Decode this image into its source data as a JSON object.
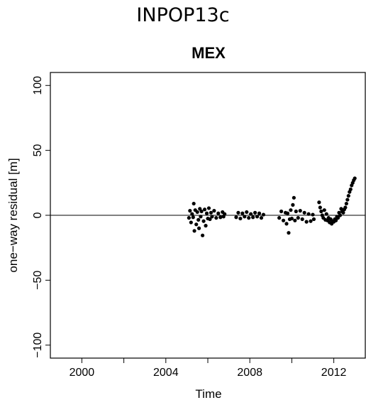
{
  "header": {
    "title": "INPOP13c"
  },
  "chart_data": {
    "type": "scatter",
    "title": "MEX",
    "xlabel": "Time",
    "ylabel": "one−way residual [m]",
    "xlim": [
      1998.5,
      2013.5
    ],
    "ylim": [
      -110,
      110
    ],
    "x_ticks": [
      2000,
      2002,
      2004,
      2006,
      2008,
      2010,
      2012
    ],
    "x_tick_labels": [
      "2000",
      "",
      "2004",
      "",
      "2008",
      "",
      "2012"
    ],
    "y_ticks": [
      -100,
      -50,
      0,
      50,
      100
    ],
    "y_tick_labels": [
      "−100",
      "−50",
      "0",
      "50",
      "100"
    ],
    "reference_line": 0,
    "grid": false,
    "marker_color": "#000000",
    "series": [
      {
        "values": [
          [
            2005.1,
            -2.0
          ],
          [
            2005.15,
            3.5
          ],
          [
            2005.2,
            -5.5
          ],
          [
            2005.25,
            1.0
          ],
          [
            2005.3,
            -1.5
          ],
          [
            2005.33,
            9.0
          ],
          [
            2005.36,
            -12.0
          ],
          [
            2005.4,
            4.0
          ],
          [
            2005.45,
            -7.0
          ],
          [
            2005.5,
            2.5
          ],
          [
            2005.55,
            -3.5
          ],
          [
            2005.58,
            -10.0
          ],
          [
            2005.62,
            5.0
          ],
          [
            2005.66,
            -1.0
          ],
          [
            2005.7,
            3.0
          ],
          [
            2005.75,
            -15.5
          ],
          [
            2005.8,
            -4.5
          ],
          [
            2005.85,
            4.5
          ],
          [
            2005.9,
            -8.0
          ],
          [
            2005.95,
            1.5
          ],
          [
            2006.0,
            -2.5
          ],
          [
            2006.05,
            5.5
          ],
          [
            2006.1,
            -3.0
          ],
          [
            2006.15,
            2.0
          ],
          [
            2006.2,
            -1.0
          ],
          [
            2006.3,
            3.5
          ],
          [
            2006.4,
            -2.0
          ],
          [
            2006.5,
            1.5
          ],
          [
            2006.6,
            -1.5
          ],
          [
            2006.7,
            2.5
          ],
          [
            2006.75,
            -1.0
          ],
          [
            2006.8,
            1.0
          ],
          [
            2007.35,
            -1.5
          ],
          [
            2007.45,
            2.0
          ],
          [
            2007.55,
            -2.5
          ],
          [
            2007.65,
            1.5
          ],
          [
            2007.75,
            -1.0
          ],
          [
            2007.85,
            2.5
          ],
          [
            2007.95,
            -2.0
          ],
          [
            2008.05,
            1.0
          ],
          [
            2008.15,
            -1.5
          ],
          [
            2008.25,
            2.0
          ],
          [
            2008.35,
            -1.0
          ],
          [
            2008.45,
            1.5
          ],
          [
            2008.55,
            -2.0
          ],
          [
            2008.65,
            0.5
          ],
          [
            2009.4,
            -2.0
          ],
          [
            2009.5,
            3.0
          ],
          [
            2009.6,
            -4.0
          ],
          [
            2009.7,
            2.0
          ],
          [
            2009.75,
            -6.5
          ],
          [
            2009.8,
            1.5
          ],
          [
            2009.85,
            -13.5
          ],
          [
            2009.9,
            -3.0
          ],
          [
            2009.95,
            4.0
          ],
          [
            2010.0,
            -2.5
          ],
          [
            2010.05,
            8.0
          ],
          [
            2010.1,
            13.5
          ],
          [
            2010.15,
            -4.0
          ],
          [
            2010.2,
            3.0
          ],
          [
            2010.3,
            -2.0
          ],
          [
            2010.4,
            3.5
          ],
          [
            2010.5,
            -3.0
          ],
          [
            2010.6,
            2.0
          ],
          [
            2010.7,
            -5.0
          ],
          [
            2010.8,
            1.0
          ],
          [
            2010.9,
            -4.5
          ],
          [
            2011.0,
            0.5
          ],
          [
            2011.05,
            -3.0
          ],
          [
            2011.3,
            10.0
          ],
          [
            2011.35,
            6.0
          ],
          [
            2011.4,
            3.0
          ],
          [
            2011.45,
            0.0
          ],
          [
            2011.5,
            -2.0
          ],
          [
            2011.55,
            4.0
          ],
          [
            2011.6,
            -3.5
          ],
          [
            2011.65,
            1.0
          ],
          [
            2011.7,
            -4.0
          ],
          [
            2011.75,
            -2.0
          ],
          [
            2011.8,
            -5.5
          ],
          [
            2011.85,
            -3.0
          ],
          [
            2011.9,
            -6.5
          ],
          [
            2011.95,
            -4.5
          ],
          [
            2012.0,
            -5.0
          ],
          [
            2012.05,
            -3.0
          ],
          [
            2012.1,
            -4.0
          ],
          [
            2012.15,
            -1.0
          ],
          [
            2012.2,
            -2.0
          ],
          [
            2012.25,
            2.0
          ],
          [
            2012.3,
            0.0
          ],
          [
            2012.35,
            5.0
          ],
          [
            2012.4,
            3.0
          ],
          [
            2012.45,
            2.0
          ],
          [
            2012.5,
            4.5
          ],
          [
            2012.55,
            6.0
          ],
          [
            2012.6,
            9.0
          ],
          [
            2012.65,
            12.0
          ],
          [
            2012.7,
            15.0
          ],
          [
            2012.75,
            18.0
          ],
          [
            2012.8,
            20.0
          ],
          [
            2012.85,
            23.0
          ],
          [
            2012.9,
            25.0
          ],
          [
            2012.95,
            27.0
          ],
          [
            2013.0,
            28.5
          ]
        ]
      }
    ]
  }
}
